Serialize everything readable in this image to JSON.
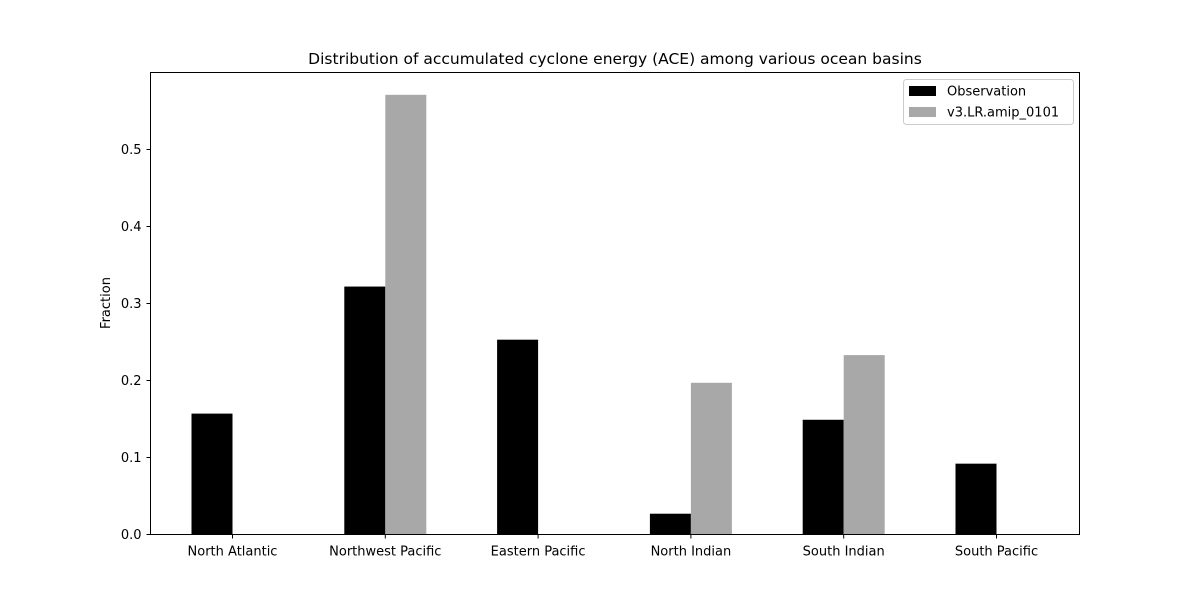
{
  "chart_data": {
    "type": "bar",
    "title": "Distribution of accumulated cyclone energy (ACE) among various ocean basins",
    "xlabel": "",
    "ylabel": "Fraction",
    "categories": [
      "North Atlantic",
      "Northwest Pacific",
      "Eastern Pacific",
      "North Indian",
      "South Indian",
      "South Pacific"
    ],
    "series": [
      {
        "name": "Observation",
        "color": "#000000",
        "values": [
          0.157,
          0.322,
          0.253,
          0.027,
          0.149,
          0.092
        ]
      },
      {
        "name": "v3.LR.amip_0101",
        "color": "#a8a8a8",
        "values": [
          0.0,
          0.571,
          0.0,
          0.197,
          0.233,
          0.0
        ]
      }
    ],
    "ylim": [
      0,
      0.6
    ],
    "yticks": [
      "0.0",
      "0.1",
      "0.2",
      "0.3",
      "0.4",
      "0.5"
    ],
    "grid": false,
    "legend_position": "top-right"
  }
}
